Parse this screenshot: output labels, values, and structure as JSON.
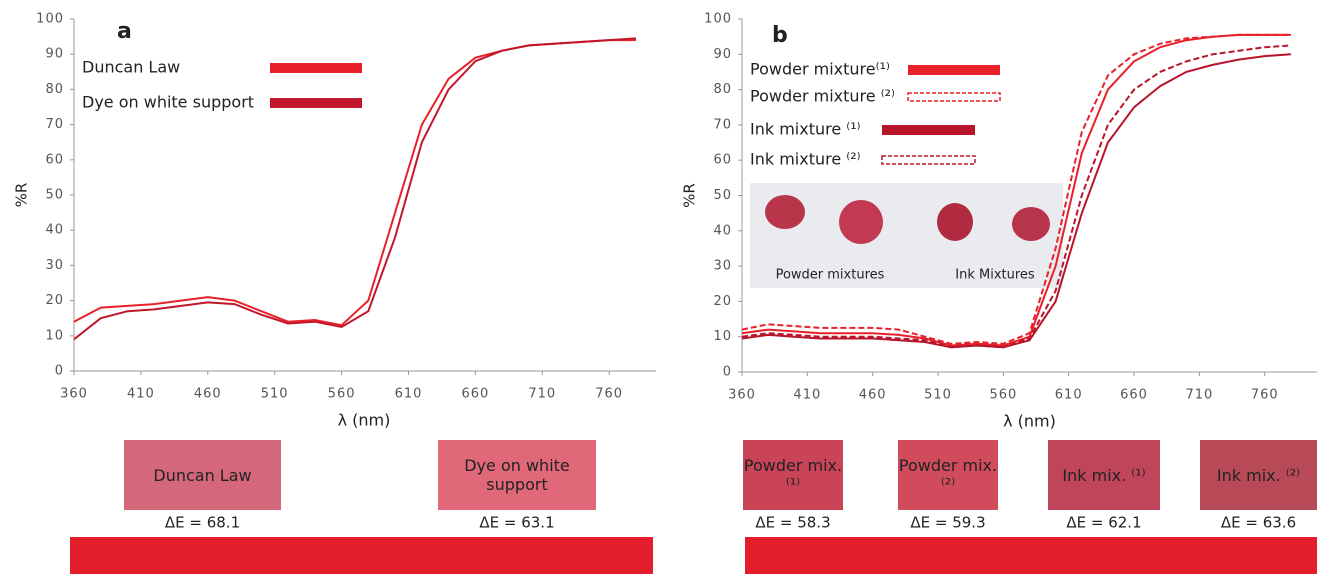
{
  "chart_data": [
    {
      "type": "line",
      "panel_label": "a",
      "ylabel": "%R",
      "xlabel": "λ (nm)",
      "x": [
        360,
        380,
        400,
        420,
        440,
        460,
        480,
        500,
        520,
        540,
        560,
        580,
        600,
        620,
        640,
        660,
        680,
        700,
        720,
        740,
        760,
        780
      ],
      "xlim": [
        360,
        795
      ],
      "xticks": [
        360,
        410,
        460,
        510,
        560,
        610,
        660,
        710,
        760
      ],
      "ylim": [
        0,
        100
      ],
      "yticks": [
        0,
        10,
        20,
        30,
        40,
        50,
        60,
        70,
        80,
        90,
        100
      ],
      "series": [
        {
          "name": "Duncan Law",
          "color": "#e8202a",
          "dashed": false,
          "values": [
            14,
            18,
            18.5,
            19,
            20,
            21,
            20,
            17,
            14,
            14.5,
            13,
            20,
            45,
            70,
            83,
            89,
            91,
            92.5,
            93,
            93.5,
            94,
            94
          ]
        },
        {
          "name": "Dye on white support",
          "color": "#c0182a",
          "dashed": false,
          "values": [
            9,
            15,
            17,
            17.5,
            18.5,
            19.5,
            19,
            16,
            13.5,
            14,
            12.5,
            17,
            38,
            65,
            80,
            88,
            91,
            92.5,
            93,
            93.5,
            94,
            94.5
          ]
        }
      ],
      "swatches": [
        {
          "label": "Duncan Law",
          "color": "#d4687a",
          "delta_e": "ΔE = 68.1"
        },
        {
          "label": "Dye on white support",
          "color": "#e06878",
          "delta_e": "ΔE = 63.1"
        }
      ],
      "reference_color": "#e31e2a"
    },
    {
      "type": "line",
      "panel_label": "b",
      "ylabel": "%R",
      "xlabel": "λ (nm)",
      "x": [
        360,
        380,
        400,
        420,
        440,
        460,
        480,
        500,
        520,
        540,
        560,
        580,
        600,
        620,
        640,
        660,
        680,
        700,
        720,
        740,
        760,
        780
      ],
      "xlim": [
        360,
        800
      ],
      "xticks": [
        360,
        410,
        460,
        510,
        560,
        610,
        660,
        710,
        760
      ],
      "ylim": [
        0,
        100
      ],
      "yticks": [
        0,
        10,
        20,
        30,
        40,
        50,
        60,
        70,
        80,
        90,
        100
      ],
      "series": [
        {
          "name": "Powder mixture⁽¹⁾",
          "color": "#e8202a",
          "dashed": false,
          "values": [
            11,
            12,
            11.5,
            11,
            11,
            11,
            10.5,
            9.5,
            7.5,
            8,
            7.5,
            10,
            30,
            62,
            80,
            88,
            92,
            94,
            95,
            95.5,
            95.5,
            95.5
          ]
        },
        {
          "name": "Powder mixture ⁽²⁾",
          "color": "#e8202a",
          "dashed": true,
          "values": [
            12,
            13.5,
            13,
            12.5,
            12.5,
            12.5,
            12,
            10,
            8,
            8.5,
            8,
            11,
            35,
            68,
            84,
            90,
            93,
            94.5,
            95,
            95.5,
            95.5,
            95.5
          ]
        },
        {
          "name": "Ink mixture ⁽¹⁾",
          "color": "#b8142a",
          "dashed": false,
          "values": [
            9.5,
            10.5,
            10,
            9.5,
            9.5,
            9.5,
            9,
            8.5,
            7,
            7.5,
            7,
            9,
            20,
            45,
            65,
            75,
            81,
            85,
            87,
            88.5,
            89.5,
            90
          ]
        },
        {
          "name": "Ink mixture ⁽²⁾",
          "color": "#b8142a",
          "dashed": true,
          "values": [
            10,
            11,
            10.5,
            10,
            10,
            10,
            9.5,
            9,
            7,
            7.5,
            7,
            9.5,
            23,
            50,
            70,
            80,
            85,
            88,
            90,
            91,
            92,
            92.5
          ]
        }
      ],
      "inset_labels": [
        "Powder mixtures",
        "Ink Mixtures"
      ],
      "swatches": [
        {
          "label": "Powder mix. ⁽¹⁾",
          "color": "#c94457",
          "delta_e": "ΔE = 58.3"
        },
        {
          "label": "Powder mix. ⁽²⁾",
          "color": "#d04c5d",
          "delta_e": "ΔE = 59.3"
        },
        {
          "label": "Ink mix. ⁽¹⁾",
          "color": "#c0455a",
          "delta_e": "ΔE = 62.1"
        },
        {
          "label": "Ink mix. ⁽²⁾",
          "color": "#b84a58",
          "delta_e": "ΔE = 63.6"
        }
      ],
      "reference_color": "#e31e2a"
    }
  ]
}
